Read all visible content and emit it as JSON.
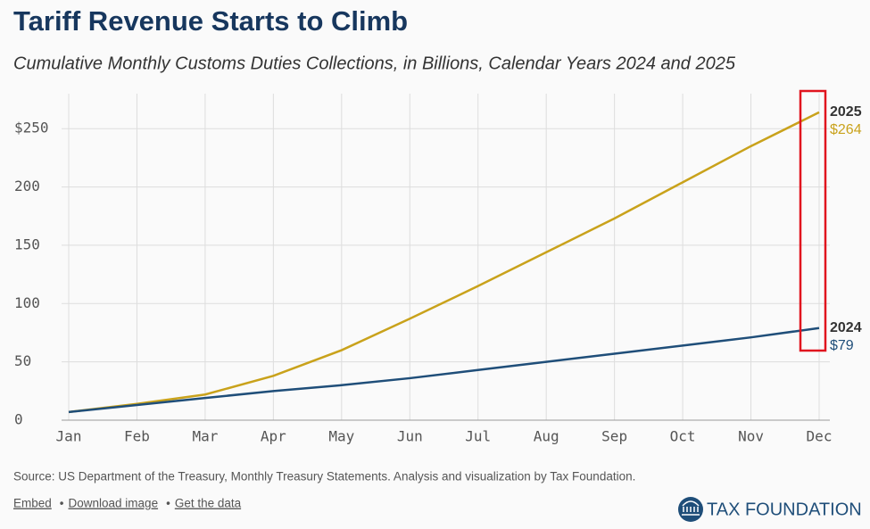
{
  "chart_data": {
    "type": "line",
    "title": "Tariff Revenue Starts to Climb",
    "subtitle": "Cumulative Monthly Customs Duties Collections, in Billions, Calendar Years 2024 and 2025",
    "categories": [
      "Jan",
      "Feb",
      "Mar",
      "Apr",
      "May",
      "Jun",
      "Jul",
      "Aug",
      "Sep",
      "Oct",
      "Nov",
      "Dec"
    ],
    "series": [
      {
        "name": "2025",
        "color": "#c9a21b",
        "values": [
          7,
          14,
          22,
          38,
          60,
          87,
          115,
          144,
          173,
          204,
          235,
          264
        ],
        "value_labels": [
          null,
          null,
          null,
          null,
          null,
          null,
          null,
          null,
          null,
          null,
          null,
          "$264"
        ]
      },
      {
        "name": "2024",
        "color": "#1f4e79",
        "values": [
          7,
          13,
          19,
          25,
          30,
          36,
          43,
          50,
          57,
          64,
          71,
          79
        ],
        "value_labels": [
          null,
          null,
          null,
          null,
          null,
          null,
          null,
          null,
          null,
          null,
          null,
          "$79"
        ]
      }
    ],
    "ylim": [
      0,
      280
    ],
    "yticks": [
      0,
      50,
      100,
      150,
      200,
      {
        "value": 250,
        "label": "$250"
      }
    ],
    "grid": true
  },
  "footer": {
    "source": "Source: US Department of the Treasury, Monthly Treasury Statements. Analysis and visualization by Tax Foundation.",
    "links": [
      "Embed",
      "Download image",
      "Get the data"
    ],
    "separator": "•",
    "logo": "TAX FOUNDATION"
  }
}
